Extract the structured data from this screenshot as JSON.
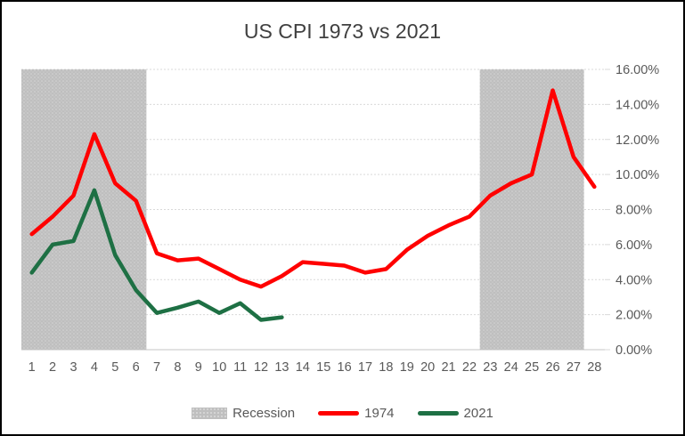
{
  "chart_data": {
    "type": "line",
    "title": "US CPI 1973 vs 2021",
    "categories": [
      "1",
      "2",
      "3",
      "4",
      "5",
      "6",
      "7",
      "8",
      "9",
      "10",
      "11",
      "12",
      "13",
      "14",
      "15",
      "16",
      "17",
      "18",
      "19",
      "20",
      "21",
      "22",
      "23",
      "24",
      "25",
      "26",
      "27",
      "28"
    ],
    "series": [
      {
        "name": "1974",
        "color": "#FF0000",
        "values": [
          6.6,
          7.6,
          8.8,
          12.3,
          9.5,
          8.5,
          5.5,
          5.1,
          5.2,
          4.6,
          4.0,
          3.6,
          4.2,
          5.0,
          4.9,
          4.8,
          4.4,
          4.6,
          5.7,
          6.5,
          7.1,
          7.6,
          8.8,
          9.5,
          10.0,
          14.8,
          11.0,
          9.3
        ]
      },
      {
        "name": "2021",
        "color": "#1E7044",
        "values": [
          4.4,
          6.0,
          6.2,
          9.1,
          5.4,
          3.4,
          2.1,
          2.4,
          2.75,
          2.1,
          2.65,
          1.7,
          1.85
        ]
      }
    ],
    "recession_bands": [
      {
        "label": "Recession",
        "from_category": 1,
        "to_category": 6
      },
      {
        "label": "Recession",
        "from_category": 23,
        "to_category": 27
      }
    ],
    "band_color": "#BFBFBF",
    "y_axis": {
      "side": "right",
      "min": 0,
      "max": 16,
      "step": 2,
      "tick_labels": [
        "16.00%",
        "14.00%",
        "12.00%",
        "10.00%",
        "8.00%",
        "6.00%",
        "4.00%",
        "2.00%",
        "0.00%"
      ]
    },
    "x_axis": {
      "tick_labels": [
        "1",
        "2",
        "3",
        "4",
        "5",
        "6",
        "7",
        "8",
        "9",
        "10",
        "11",
        "12",
        "13",
        "14",
        "15",
        "16",
        "17",
        "18",
        "19",
        "20",
        "21",
        "22",
        "23",
        "24",
        "25",
        "26",
        "27",
        "28"
      ]
    },
    "grid": "horizontal-dotted",
    "gridline_color": "#D9D9D9",
    "axis_text_color": "#595959",
    "title_color": "#404040",
    "legend_position": "bottom",
    "legend": [
      {
        "label": "Recession",
        "swatch": "band"
      },
      {
        "label": "1974",
        "swatch": "line",
        "color": "#FF0000"
      },
      {
        "label": "2021",
        "swatch": "line",
        "color": "#1E7044"
      }
    ]
  }
}
